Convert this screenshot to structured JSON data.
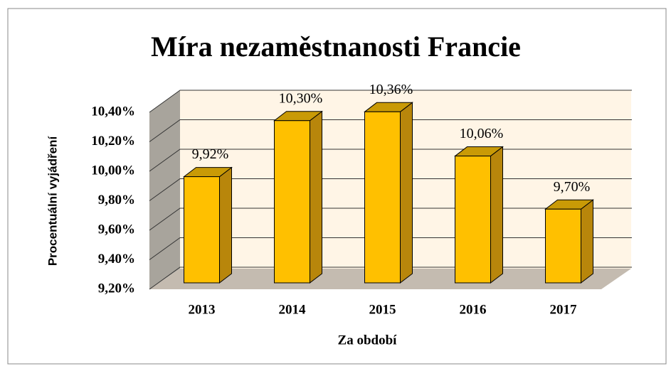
{
  "chart_data": {
    "type": "bar3d",
    "title": "Míra nezaměstnanosti Francie",
    "x_label": "Za období",
    "y_label": "Procentuální vyjádření",
    "categories": [
      "2013",
      "2014",
      "2015",
      "2016",
      "2017"
    ],
    "values": [
      9.92,
      10.3,
      10.36,
      10.06,
      9.7
    ],
    "value_labels": [
      "9,92%",
      "10,30%",
      "10,36%",
      "10,06%",
      "9,70%"
    ],
    "color": "#ffc000",
    "ylim": [
      9.2,
      10.4
    ],
    "yticks": [
      {
        "value": 9.2,
        "label": "9,20%"
      },
      {
        "value": 9.4,
        "label": "9,40%"
      },
      {
        "value": 9.6,
        "label": "9,60%"
      },
      {
        "value": 9.8,
        "label": "9,80%"
      },
      {
        "value": 10.0,
        "label": "10,00%"
      },
      {
        "value": 10.2,
        "label": "10,20%"
      },
      {
        "value": 10.4,
        "label": "10,40%"
      }
    ],
    "grid": true
  }
}
